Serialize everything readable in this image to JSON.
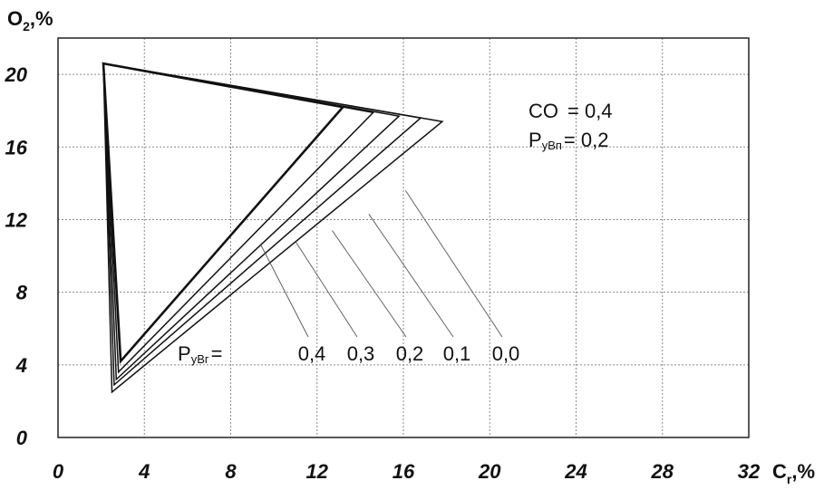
{
  "chart_data": {
    "type": "line",
    "xlabel": {
      "main": "C",
      "sub": "r",
      "suffix": ",%"
    },
    "ylabel": {
      "main": "O",
      "sub": "2",
      "suffix": ",%"
    },
    "xlim": [
      0,
      32
    ],
    "ylim": [
      0,
      22
    ],
    "x_ticks": [
      "0",
      "4",
      "8",
      "12",
      "16",
      "20",
      "24",
      "28",
      "32"
    ],
    "y_ticks": [
      "0",
      "4",
      "8",
      "12",
      "16",
      "20"
    ],
    "x_tick_values": [
      0,
      4,
      8,
      12,
      16,
      20,
      24,
      28,
      32
    ],
    "y_tick_values": [
      0,
      4,
      8,
      12,
      16,
      20
    ],
    "grid": true,
    "series": [
      {
        "label": "0,0",
        "stroke": 1.5,
        "points": [
          [
            2.1,
            20.6
          ],
          [
            17.8,
            17.4
          ],
          [
            2.5,
            2.5
          ],
          [
            2.1,
            20.6
          ]
        ]
      },
      {
        "label": "0,1",
        "stroke": 1.5,
        "points": [
          [
            2.1,
            20.6
          ],
          [
            16.8,
            17.6
          ],
          [
            2.6,
            2.9
          ],
          [
            2.1,
            20.6
          ]
        ]
      },
      {
        "label": "0,2",
        "stroke": 1.5,
        "points": [
          [
            2.1,
            20.6
          ],
          [
            15.8,
            17.7
          ],
          [
            2.7,
            3.2
          ],
          [
            2.1,
            20.6
          ]
        ]
      },
      {
        "label": "0,3",
        "stroke": 1.5,
        "points": [
          [
            2.1,
            20.6
          ],
          [
            14.6,
            17.9
          ],
          [
            2.8,
            3.6
          ],
          [
            2.1,
            20.6
          ]
        ]
      },
      {
        "label": "0,4",
        "stroke": 2.6,
        "points": [
          [
            2.1,
            20.6
          ],
          [
            13.2,
            18.2
          ],
          [
            2.9,
            4.2
          ],
          [
            2.1,
            20.6
          ]
        ]
      }
    ],
    "annotations": {
      "co_label": "CO",
      "co_value": "= 0,4",
      "pv_label_main": "P",
      "pv_label_sub": "уВп",
      "pv_value": "= 0,2",
      "pr_label_main": "P",
      "pr_label_sub": "уВг",
      "pr_eq": "=",
      "pr_values": [
        "0,4",
        "0,3",
        "0,2",
        "0,1",
        "0,0"
      ]
    }
  }
}
